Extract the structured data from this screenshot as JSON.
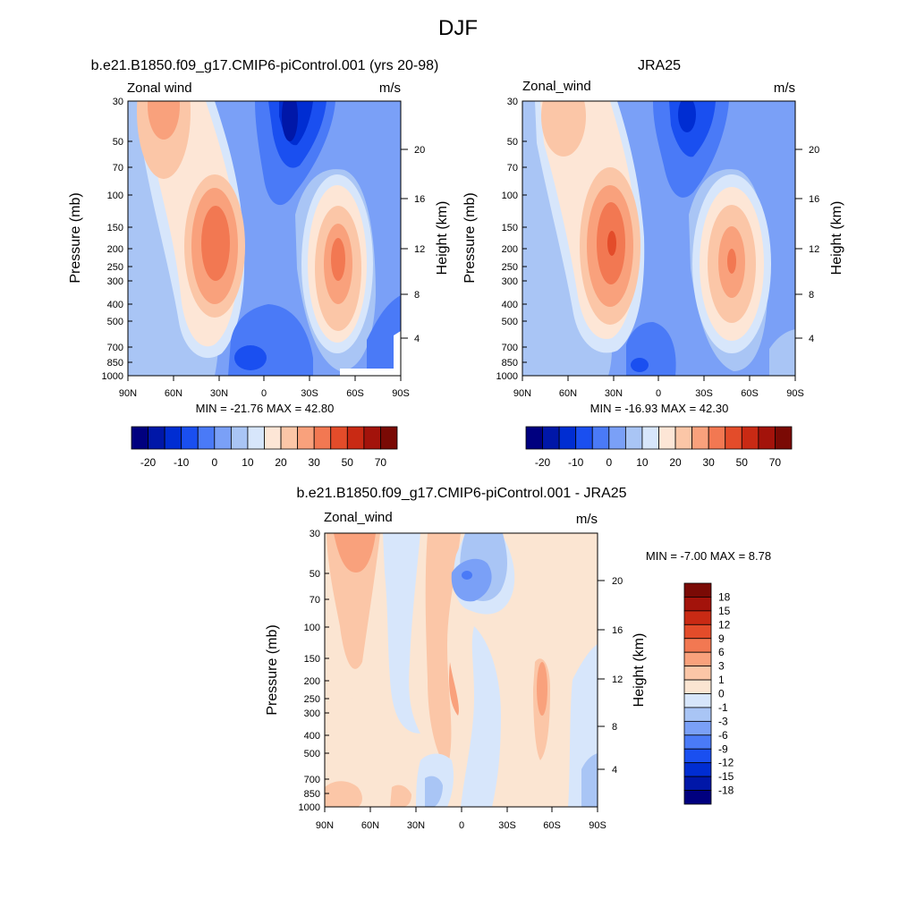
{
  "page_title": "DJF",
  "colors": {
    "model_colorbar": [
      "#00007f",
      "#0017a8",
      "#002dd2",
      "#1a4ff0",
      "#4a7af7",
      "#7aa0f7",
      "#a9c5f5",
      "#d7e6fb",
      "#fde6d6",
      "#fbc6a7",
      "#f9a17c",
      "#f27852",
      "#e34c2a",
      "#c92a14",
      "#a3130b",
      "#7a0a05"
    ],
    "diff_colorbar": [
      "#00007f",
      "#0017a8",
      "#002dd2",
      "#1a4ff0",
      "#4a7af7",
      "#7aa0f7",
      "#a9c5f5",
      "#d7e6fb",
      "#fbe5d2",
      "#fbc6a7",
      "#f9a17c",
      "#f27852",
      "#e34c2a",
      "#c92a14",
      "#a3130b",
      "#7a0a05"
    ]
  },
  "chart_data": [
    {
      "type": "heatmap",
      "title": "b.e21.B1850.f09_g17.CMIP6-piControl.001 (yrs 20-98)",
      "left_label": "Zonal wind",
      "units": "m/s",
      "ylabel": "Pressure (mb)",
      "ylabel_right": "Height (km)",
      "x_ticks": [
        "90N",
        "60N",
        "30N",
        "0",
        "30S",
        "60S",
        "90S"
      ],
      "y_ticks": [
        "30",
        "50",
        "70",
        "100",
        "150",
        "200",
        "250",
        "300",
        "400",
        "500",
        "700",
        "850",
        "1000"
      ],
      "y_ticks_right": [
        "20",
        "16",
        "12",
        "8",
        "4"
      ],
      "stats": "MIN = -21.76  MAX =  42.80",
      "colorbar_labels": [
        "-20",
        "-10",
        "0",
        "10",
        "20",
        "30",
        "50",
        "70"
      ],
      "features": [
        {
          "lat": 30,
          "plev": 200,
          "value": 42.8
        },
        {
          "lat": -47,
          "plev": 250,
          "value": 35
        },
        {
          "lat": 68,
          "plev": 30,
          "value": 30
        },
        {
          "lat": -18,
          "plev": 30,
          "value": -21.76
        }
      ]
    },
    {
      "type": "heatmap",
      "title": "JRA25",
      "left_label": "Zonal_wind",
      "units": "m/s",
      "ylabel": "Pressure (mb)",
      "ylabel_right": "Height (km)",
      "x_ticks": [
        "90N",
        "60N",
        "30N",
        "0",
        "30S",
        "60S",
        "90S"
      ],
      "y_ticks": [
        "30",
        "50",
        "70",
        "100",
        "150",
        "200",
        "250",
        "300",
        "400",
        "500",
        "700",
        "850",
        "1000"
      ],
      "y_ticks_right": [
        "20",
        "16",
        "12",
        "8",
        "4"
      ],
      "stats": "MIN = -16.93  MAX =  42.30",
      "colorbar_labels": [
        "-20",
        "-10",
        "0",
        "10",
        "20",
        "30",
        "50",
        "70"
      ],
      "features": [
        {
          "lat": 30,
          "plev": 200,
          "value": 42.3
        },
        {
          "lat": -48,
          "plev": 250,
          "value": 34
        },
        {
          "lat": 65,
          "plev": 50,
          "value": 22
        },
        {
          "lat": -18,
          "plev": 30,
          "value": -16.93
        }
      ]
    },
    {
      "type": "heatmap",
      "title": "b.e21.B1850.f09_g17.CMIP6-piControl.001 - JRA25",
      "left_label": "Zonal_wind",
      "units": "m/s",
      "ylabel": "Pressure (mb)",
      "ylabel_right": "Height (km)",
      "x_ticks": [
        "90N",
        "60N",
        "30N",
        "0",
        "30S",
        "60S",
        "90S"
      ],
      "y_ticks": [
        "30",
        "50",
        "70",
        "100",
        "150",
        "200",
        "250",
        "300",
        "400",
        "500",
        "700",
        "850",
        "1000"
      ],
      "y_ticks_right": [
        "20",
        "16",
        "12",
        "8",
        "4"
      ],
      "stats": "MIN =  -7.00  MAX =   8.78",
      "colorbar_labels": [
        "18",
        "15",
        "12",
        "9",
        "6",
        "3",
        "1",
        "0",
        "-1",
        "-3",
        "-6",
        "-9",
        "-12",
        "-15",
        "-18"
      ],
      "features": [
        {
          "lat": 70,
          "plev": 30,
          "value": 8.78
        },
        {
          "lat": -8,
          "plev": 50,
          "value": -7.0
        },
        {
          "lat": -52,
          "plev": 200,
          "value": 6
        }
      ]
    }
  ]
}
